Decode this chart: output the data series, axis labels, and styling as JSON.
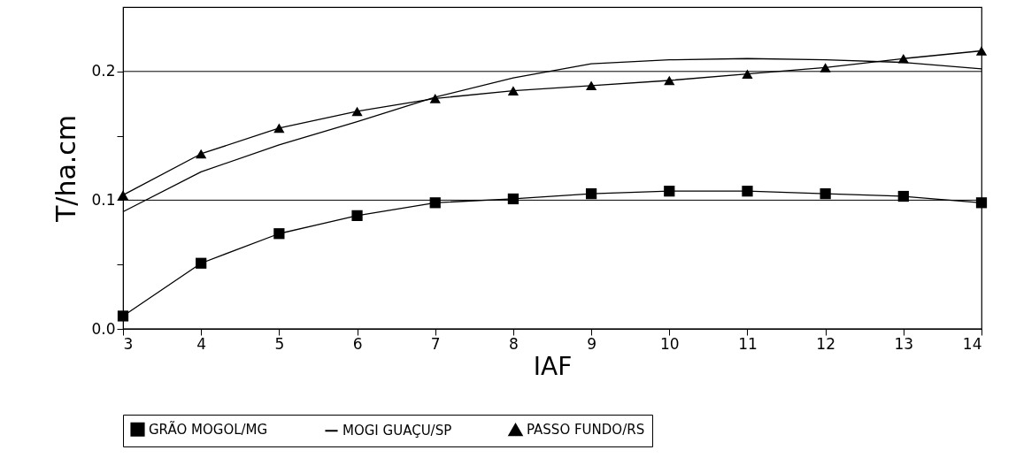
{
  "chart_data": {
    "type": "line",
    "xlabel": "IAF",
    "ylabel": "T/ha.cm",
    "x": [
      3,
      4,
      5,
      6,
      7,
      8,
      9,
      10,
      11,
      12,
      13,
      14
    ],
    "series": [
      {
        "name": "GRÃO MOGOL/MG",
        "color": "#000000",
        "marker": "square",
        "values": [
          0.01,
          0.051,
          0.074,
          0.088,
          0.098,
          0.101,
          0.105,
          0.107,
          0.107,
          0.105,
          0.103,
          0.098
        ]
      },
      {
        "name": "MOGI GUAÇU/SP",
        "color": "#000000",
        "marker": "none",
        "values": [
          0.091,
          0.122,
          0.143,
          0.161,
          0.18,
          0.195,
          0.206,
          0.209,
          0.21,
          0.209,
          0.207,
          0.202
        ]
      },
      {
        "name": "PASSO FUNDO/RS",
        "color": "#000000",
        "marker": "triangle",
        "values": [
          0.104,
          0.136,
          0.156,
          0.169,
          0.179,
          0.185,
          0.189,
          0.193,
          0.198,
          0.203,
          0.21,
          0.216
        ]
      }
    ],
    "xlim": [
      3,
      14
    ],
    "xticks": [
      3,
      4,
      5,
      6,
      7,
      8,
      9,
      10,
      11,
      12,
      13,
      14
    ],
    "ylim": [
      0,
      0.25
    ],
    "yticks": [
      {
        "value": 0,
        "label": "0.0"
      },
      {
        "value": 0.05,
        "label": null
      },
      {
        "value": 0.1,
        "label": "0.1"
      },
      {
        "value": 0.15,
        "label": null
      },
      {
        "value": 0.2,
        "label": "0.2"
      }
    ],
    "grid": "y",
    "legend": "bottom",
    "line_style": "solid"
  }
}
